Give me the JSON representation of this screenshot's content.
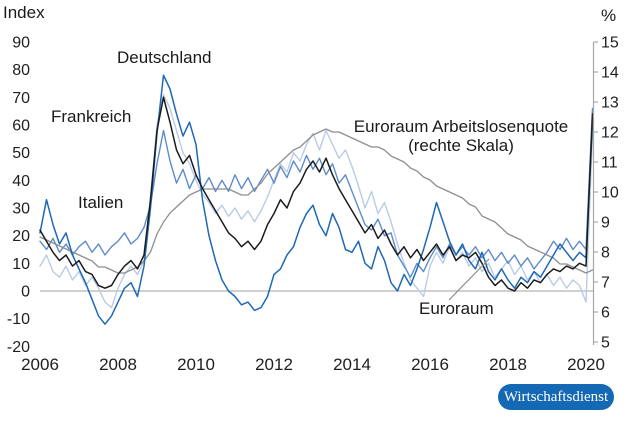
{
  "labels": {
    "index_axis": "Index",
    "percent_axis": "%",
    "deutschland": "Deutschland",
    "frankreich": "Frankreich",
    "italien": "Italien",
    "arbeitslosenquote_line1": "Euroraum Arbeitslosenquote",
    "arbeitslosenquote_line2": "(rechte Skala)",
    "euroraum": "Euroraum",
    "badge": "Wirtschaftsdienst"
  },
  "colors": {
    "deutschland": "#1e69b4",
    "frankreich": "#b9cbe7",
    "italien": "#5d8cc9",
    "euroraum": "#1c1c1c",
    "arbeitslosenquote": "#8f8f8f",
    "zero_line": "#b3b3b3",
    "right_axis": "#a8a8a8",
    "callout": "#8a8a8a",
    "badge_bg": "#1569b4",
    "badge_text": "#ffffff"
  },
  "chart_data": {
    "type": "line",
    "title": "",
    "left_axis": {
      "title": "Index",
      "ticks": [
        90,
        80,
        70,
        60,
        50,
        40,
        30,
        20,
        10,
        0,
        -10,
        -20
      ],
      "range": [
        -20,
        90
      ],
      "gridlines": "zero-only"
    },
    "right_axis": {
      "title": "%",
      "ticks": [
        15,
        14,
        13,
        12,
        11,
        10,
        9,
        8,
        7,
        6,
        5
      ],
      "range": [
        5,
        15
      ]
    },
    "x_axis": {
      "tick_years": [
        2006,
        2008,
        2010,
        2012,
        2014,
        2016,
        2018,
        2020
      ],
      "range": [
        2006,
        2020.17
      ]
    },
    "sampling": {
      "start_year": 2006,
      "step_months": 2,
      "points": 86
    },
    "legend_position": "inline-annotations",
    "series": [
      {
        "name": "Frankreich",
        "axis": "left",
        "color": "#b9cbe7",
        "width": 1.4,
        "values": [
          9,
          13,
          7,
          5,
          9,
          4,
          7,
          2,
          5,
          1,
          -4,
          -6,
          1,
          6,
          9,
          6,
          11,
          34,
          60,
          71,
          66,
          58,
          50,
          46,
          40,
          35,
          32,
          28,
          31,
          27,
          30,
          26,
          29,
          25,
          29,
          34,
          40,
          46,
          43,
          50,
          47,
          53,
          57,
          51,
          58,
          53,
          48,
          51,
          45,
          38,
          30,
          36,
          28,
          32,
          25,
          17,
          10,
          4,
          1,
          -2,
          9,
          14,
          10,
          16,
          11,
          14,
          9,
          12,
          7,
          10,
          5,
          8,
          11,
          6,
          9,
          4,
          7,
          3,
          6,
          2,
          5,
          1,
          4,
          2,
          -4,
          57
        ]
      },
      {
        "name": "Italien",
        "axis": "left",
        "color": "#5d8cc9",
        "width": 1.4,
        "values": [
          18,
          15,
          19,
          14,
          17,
          13,
          16,
          18,
          14,
          17,
          13,
          16,
          18,
          21,
          17,
          19,
          23,
          31,
          46,
          58,
          47,
          39,
          44,
          37,
          42,
          37,
          41,
          36,
          40,
          36,
          42,
          37,
          41,
          36,
          40,
          44,
          39,
          45,
          41,
          47,
          43,
          49,
          44,
          48,
          42,
          46,
          39,
          42,
          36,
          30,
          24,
          22,
          26,
          20,
          21,
          13,
          9,
          5,
          10,
          7,
          12,
          16,
          12,
          17,
          13,
          16,
          13,
          16,
          12,
          15,
          11,
          14,
          10,
          13,
          9,
          12,
          8,
          11,
          14,
          18,
          15,
          19,
          15,
          18,
          15,
          66
        ]
      },
      {
        "name": "Euroraum Arbeitslosenquote (rechte Skala)",
        "axis": "right",
        "color": "#8f8f8f",
        "width": 1.3,
        "values": [
          8.5,
          8.4,
          8.3,
          8.2,
          8.1,
          8.0,
          7.9,
          7.8,
          7.7,
          7.5,
          7.5,
          7.4,
          7.3,
          7.3,
          7.4,
          7.5,
          7.7,
          8.0,
          8.6,
          9.0,
          9.3,
          9.5,
          9.7,
          9.9,
          10.0,
          10.1,
          10.1,
          10.1,
          10.1,
          10.1,
          10.0,
          9.9,
          9.9,
          10.1,
          10.3,
          10.6,
          10.8,
          11.0,
          11.2,
          11.4,
          11.5,
          11.7,
          11.9,
          12.0,
          12.1,
          12.0,
          12.0,
          11.9,
          11.8,
          11.7,
          11.6,
          11.5,
          11.5,
          11.4,
          11.2,
          11.1,
          11.0,
          10.8,
          10.7,
          10.5,
          10.4,
          10.2,
          10.1,
          10.0,
          9.9,
          9.8,
          9.6,
          9.5,
          9.2,
          9.1,
          9.0,
          8.8,
          8.6,
          8.5,
          8.4,
          8.2,
          8.1,
          8.0,
          7.9,
          7.8,
          7.6,
          7.6,
          7.5,
          7.4,
          7.3,
          7.4
        ]
      },
      {
        "name": "Deutschland",
        "axis": "left",
        "color": "#1e69b4",
        "width": 1.5,
        "values": [
          21,
          33,
          24,
          17,
          21,
          13,
          8,
          3,
          -3,
          -9,
          -12,
          -9,
          -4,
          1,
          3,
          -2,
          9,
          30,
          57,
          78,
          73,
          64,
          56,
          61,
          53,
          33,
          20,
          11,
          4,
          0,
          -2,
          -5,
          -4,
          -7,
          -6,
          -2,
          6,
          8,
          13,
          16,
          23,
          28,
          31,
          24,
          20,
          28,
          23,
          15,
          14,
          18,
          10,
          8,
          16,
          11,
          3,
          0,
          6,
          2,
          8,
          15,
          23,
          32,
          25,
          18,
          13,
          17,
          11,
          8,
          14,
          7,
          4,
          8,
          4,
          1,
          5,
          3,
          7,
          5,
          9,
          13,
          17,
          14,
          11,
          14,
          12,
          61
        ]
      },
      {
        "name": "Euroraum",
        "axis": "left",
        "color": "#1c1c1c",
        "width": 1.5,
        "values": [
          22,
          18,
          14,
          11,
          13,
          9,
          11,
          7,
          6,
          2,
          1,
          2,
          6,
          9,
          11,
          8,
          13,
          33,
          58,
          70,
          61,
          51,
          46,
          49,
          42,
          37,
          33,
          29,
          25,
          21,
          19,
          16,
          18,
          15,
          18,
          24,
          28,
          33,
          30,
          36,
          39,
          44,
          47,
          43,
          48,
          42,
          37,
          33,
          29,
          25,
          21,
          24,
          19,
          22,
          17,
          13,
          16,
          12,
          15,
          11,
          14,
          17,
          13,
          16,
          11,
          13,
          12,
          14,
          10,
          5,
          2,
          4,
          1,
          0,
          3,
          1,
          4,
          3,
          6,
          8,
          7,
          9,
          8,
          10,
          9,
          64
        ]
      }
    ]
  }
}
